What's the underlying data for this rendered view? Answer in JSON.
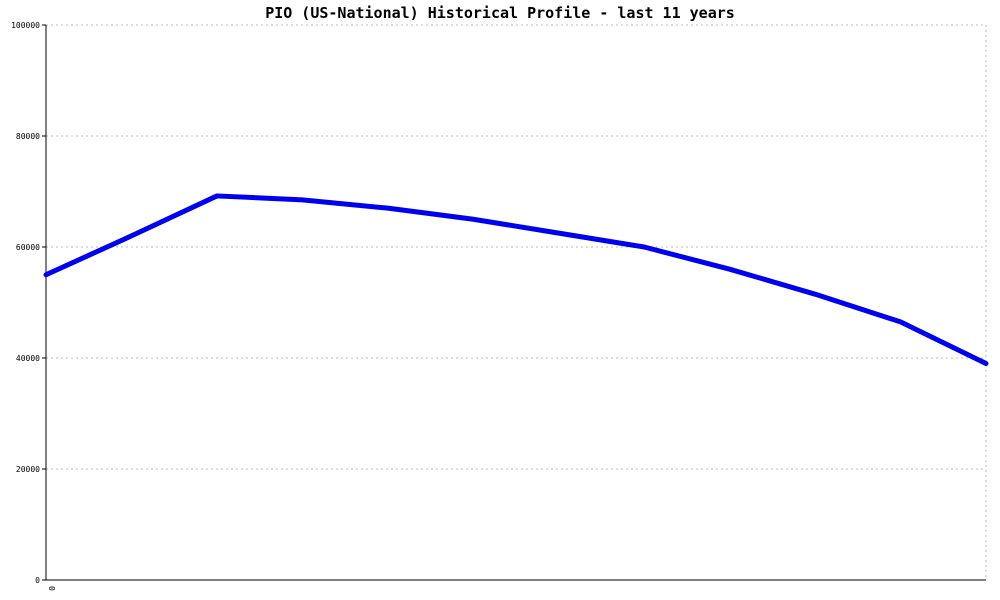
{
  "chart_data": {
    "type": "line",
    "title": "PIO (US-National) Historical Profile - last 11 years",
    "xlabel": "",
    "ylabel": "",
    "ylim": [
      0,
      100000
    ],
    "yticks": [
      0,
      20000,
      40000,
      60000,
      80000,
      100000
    ],
    "ytick_labels": [
      "0",
      "20000",
      "40000",
      "60000",
      "80000",
      "100000"
    ],
    "xtick_labels": [
      "0"
    ],
    "grid": true,
    "legend": "none",
    "series": [
      {
        "color": "#0000ee",
        "x": [
          0,
          1,
          2,
          3,
          4,
          5,
          6,
          7,
          8,
          9,
          10,
          11
        ],
        "values": [
          55000,
          62000,
          69200,
          68500,
          67000,
          65000,
          62500,
          60000,
          56000,
          51500,
          46500,
          39000
        ]
      }
    ]
  }
}
